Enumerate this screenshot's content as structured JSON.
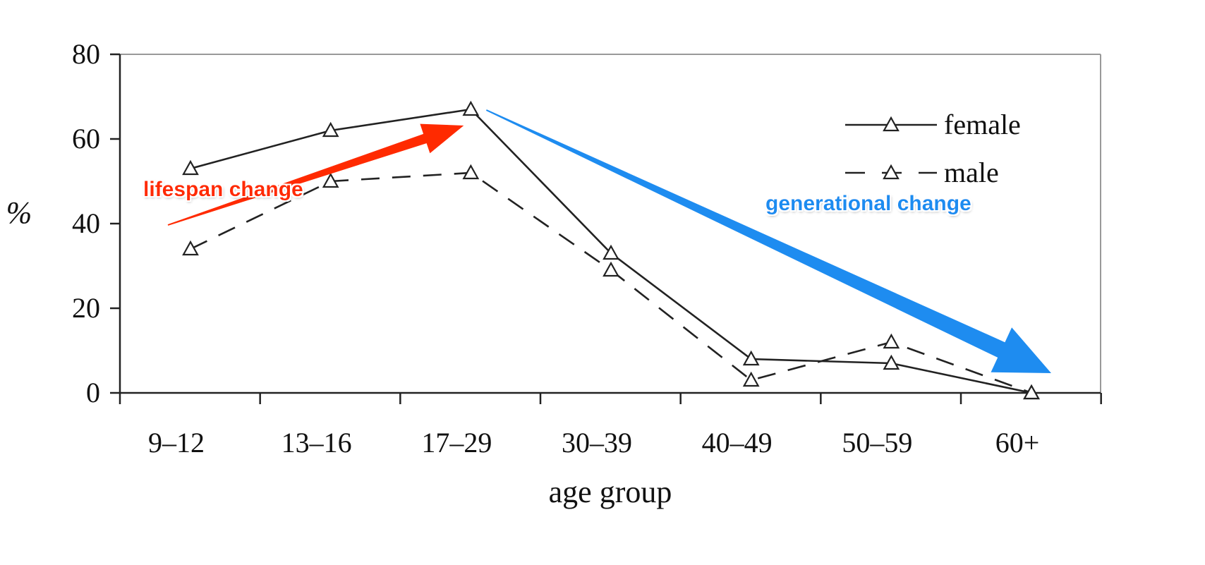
{
  "chart_data": {
    "type": "line",
    "title": "",
    "xlabel": "age group",
    "ylabel": "%",
    "categories": [
      "9–12",
      "13–16",
      "17–29",
      "30–39",
      "40–49",
      "50–59",
      "60+"
    ],
    "ylim": [
      0,
      80
    ],
    "yticks": [
      "0",
      "20",
      "40",
      "60",
      "80"
    ],
    "grid": false,
    "legend_position": "top-right",
    "series": [
      {
        "name": "female",
        "style": "solid",
        "marker": "triangle",
        "color": "#222222",
        "values": [
          53,
          62,
          67,
          33,
          8,
          7,
          0
        ]
      },
      {
        "name": "male",
        "style": "dashed",
        "marker": "triangle",
        "color": "#222222",
        "values": [
          34,
          50,
          52,
          29,
          3,
          12,
          0
        ]
      }
    ],
    "annotations": [
      {
        "text": "lifespan change",
        "color": "#ff2a00",
        "arrow_from": {
          "category": "9–12",
          "value": 40
        },
        "arrow_to": {
          "category": "17–29",
          "value": 64
        }
      },
      {
        "text": "generational change",
        "color": "#1e8cf0",
        "arrow_from": {
          "category": "17–29",
          "value": 67
        },
        "arrow_to": {
          "category": "60+",
          "value": 5
        }
      }
    ]
  }
}
